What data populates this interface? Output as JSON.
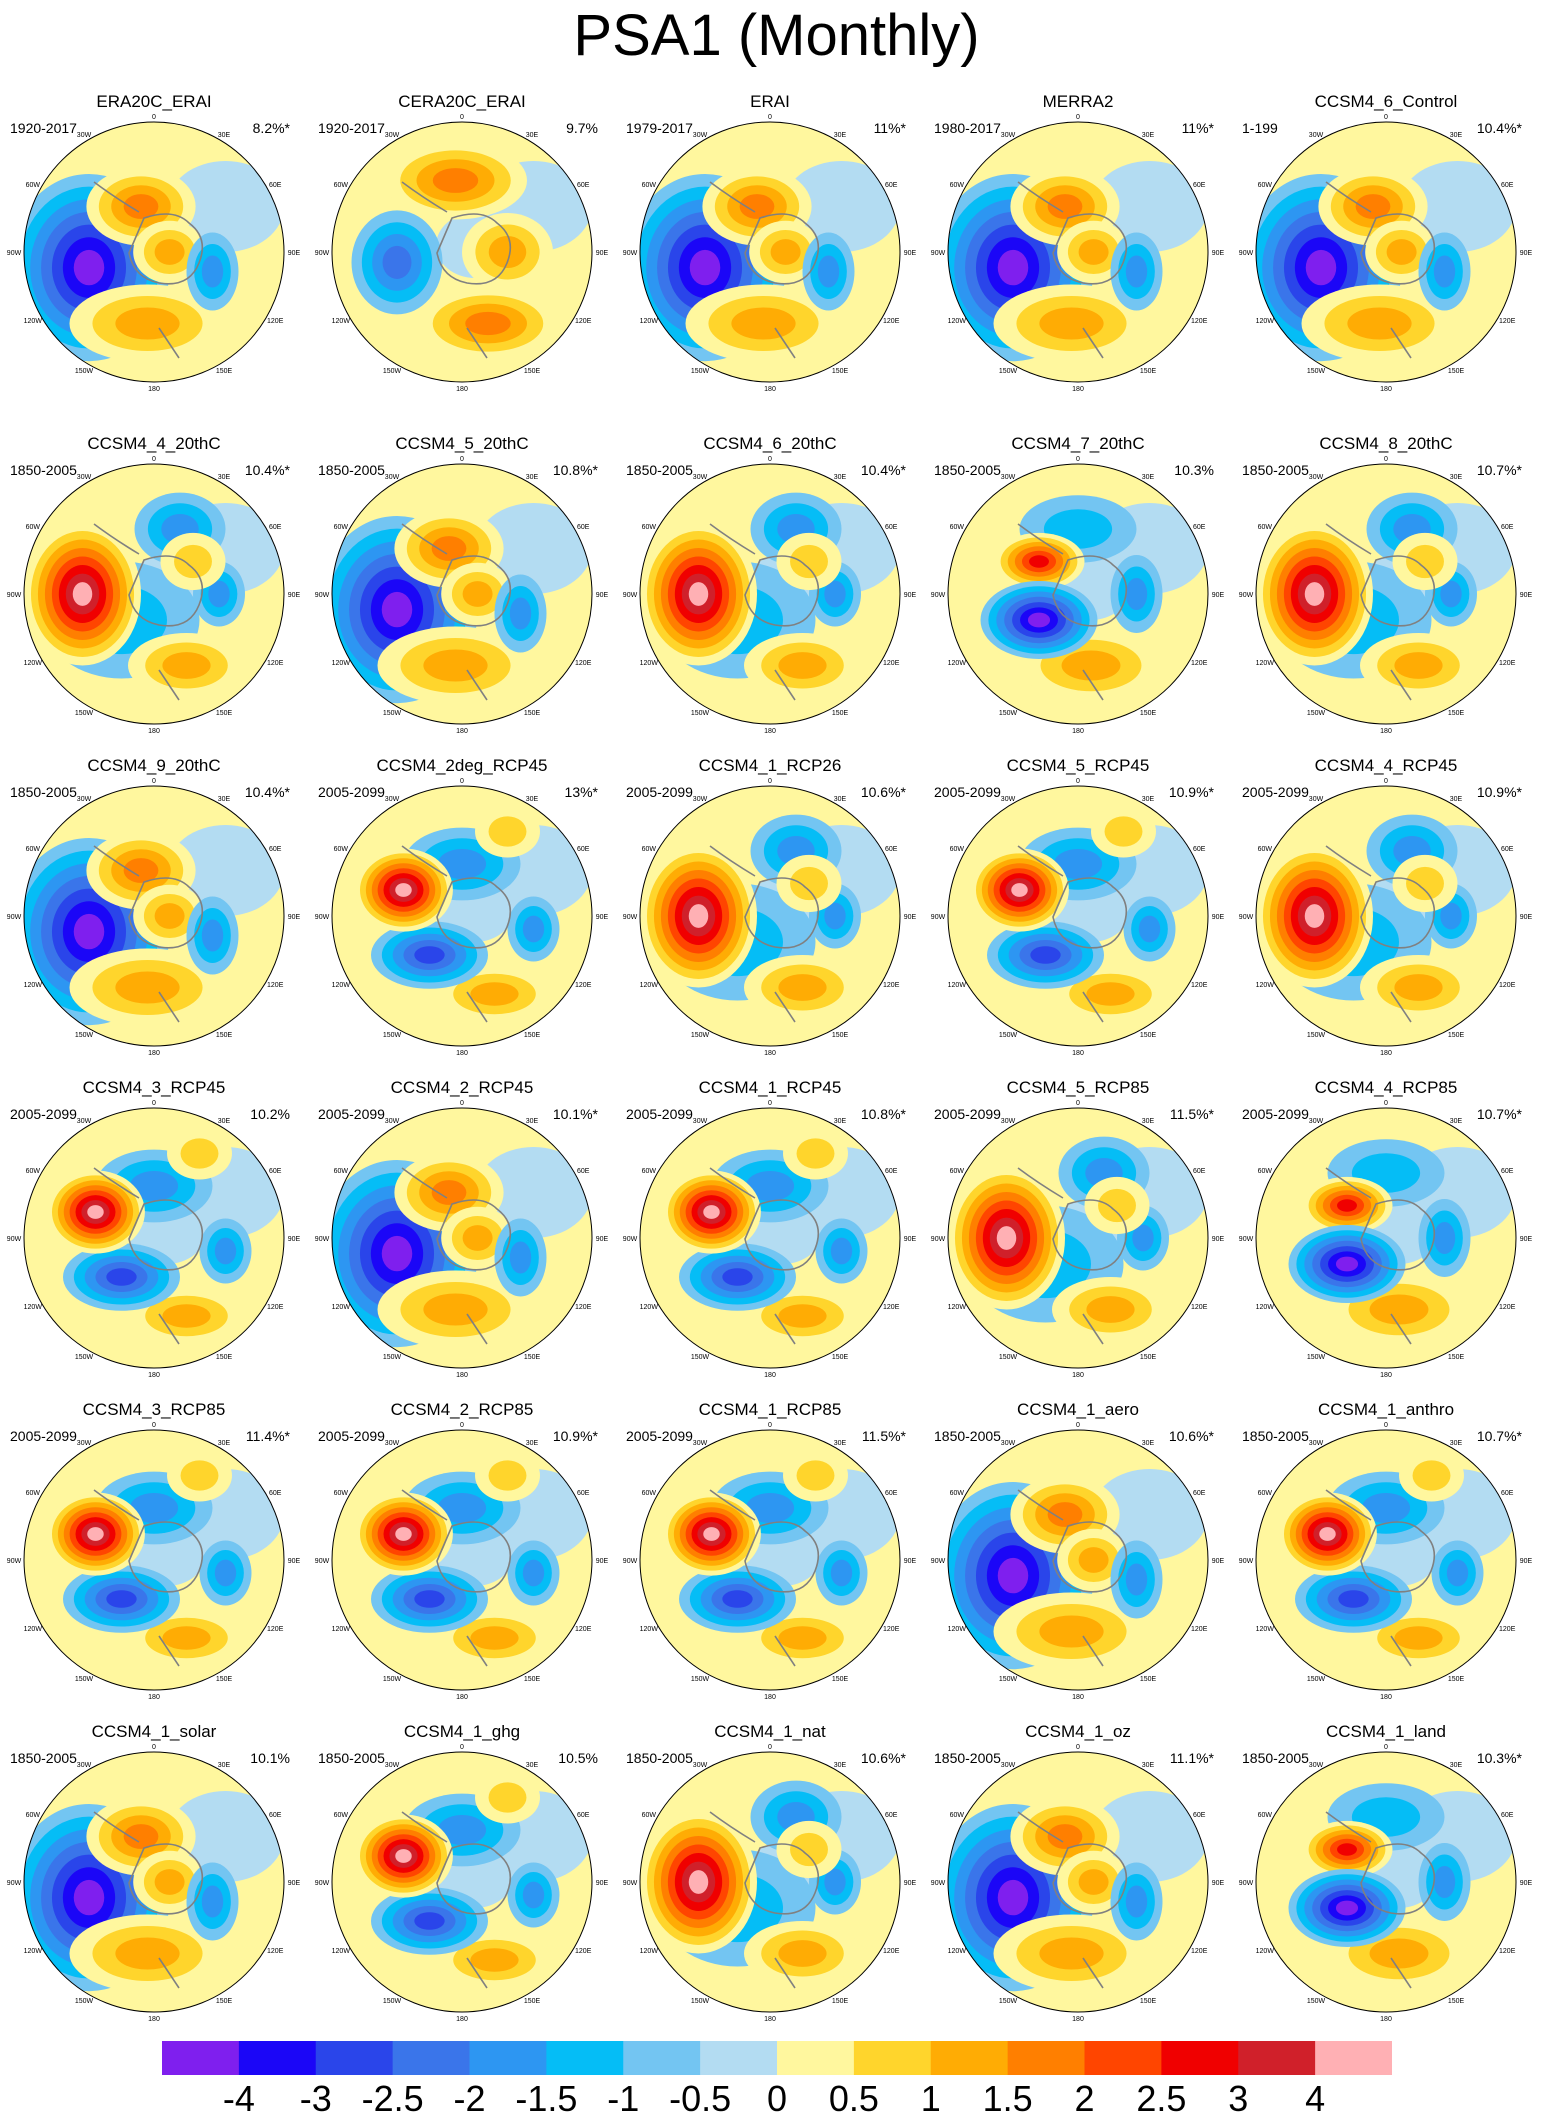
{
  "title": "PSA1 (Monthly)",
  "chart_data": {
    "type": "heatmap",
    "title": "PSA1 (Monthly)",
    "projection": "south polar stereographic",
    "map_labels": [
      "0",
      "30E",
      "60E",
      "90E",
      "120E",
      "150E",
      "180",
      "150W",
      "120W",
      "90W",
      "60W",
      "30W"
    ],
    "colorbar": {
      "levels": [
        "-4",
        "-3",
        "-2.5",
        "-2",
        "-1.5",
        "-1",
        "-0.5",
        "0",
        "0.5",
        "1",
        "1.5",
        "2",
        "2.5",
        "3",
        "4"
      ],
      "colors": [
        "#7f1fee",
        "#1b06f7",
        "#2a45ea",
        "#3a75ea",
        "#2d96f2",
        "#05bdf6",
        "#73c5f2",
        "#b3dcf2",
        "#fff79e",
        "#ffd52c",
        "#ffac04",
        "#ff7f00",
        "#ff4500",
        "#f00000",
        "#d0202a",
        "#ffb0b4"
      ]
    },
    "panels": [
      {
        "name": "ERA20C_ERAI",
        "period": "1920-2017",
        "variance": "8.2%*",
        "pattern": "neg"
      },
      {
        "name": "CERA20C_ERAI",
        "period": "1920-2017",
        "variance": "9.7%",
        "pattern": "neg_ring"
      },
      {
        "name": "ERAI",
        "period": "1979-2017",
        "variance": "11%*",
        "pattern": "neg"
      },
      {
        "name": "MERRA2",
        "period": "1980-2017",
        "variance": "11%*",
        "pattern": "neg"
      },
      {
        "name": "CCSM4_6_Control",
        "period": "1-199",
        "variance": "10.4%*",
        "pattern": "neg"
      },
      {
        "name": "CCSM4_4_20thC",
        "period": "1850-2005",
        "variance": "10.4%*",
        "pattern": "pos"
      },
      {
        "name": "CCSM4_5_20thC",
        "period": "1850-2005",
        "variance": "10.8%*",
        "pattern": "neg"
      },
      {
        "name": "CCSM4_6_20thC",
        "period": "1850-2005",
        "variance": "10.4%*",
        "pattern": "pos"
      },
      {
        "name": "CCSM4_7_20thC",
        "period": "1850-2005",
        "variance": "10.3%",
        "pattern": "dipole"
      },
      {
        "name": "CCSM4_8_20thC",
        "period": "1850-2005",
        "variance": "10.7%*",
        "pattern": "pos"
      },
      {
        "name": "CCSM4_9_20thC",
        "period": "1850-2005",
        "variance": "10.4%*",
        "pattern": "neg"
      },
      {
        "name": "CCSM4_2deg_RCP45",
        "period": "2005-2099",
        "variance": "13%*",
        "pattern": "pos_dipole"
      },
      {
        "name": "CCSM4_1_RCP26",
        "period": "2005-2099",
        "variance": "10.6%*",
        "pattern": "pos"
      },
      {
        "name": "CCSM4_5_RCP45",
        "period": "2005-2099",
        "variance": "10.9%*",
        "pattern": "pos_dipole"
      },
      {
        "name": "CCSM4_4_RCP45",
        "period": "2005-2099",
        "variance": "10.9%*",
        "pattern": "pos"
      },
      {
        "name": "CCSM4_3_RCP45",
        "period": "2005-2099",
        "variance": "10.2%",
        "pattern": "pos_dipole"
      },
      {
        "name": "CCSM4_2_RCP45",
        "period": "2005-2099",
        "variance": "10.1%*",
        "pattern": "neg"
      },
      {
        "name": "CCSM4_1_RCP45",
        "period": "2005-2099",
        "variance": "10.8%*",
        "pattern": "pos_dipole"
      },
      {
        "name": "CCSM4_5_RCP85",
        "period": "2005-2099",
        "variance": "11.5%*",
        "pattern": "pos"
      },
      {
        "name": "CCSM4_4_RCP85",
        "period": "2005-2099",
        "variance": "10.7%*",
        "pattern": "dipole"
      },
      {
        "name": "CCSM4_3_RCP85",
        "period": "2005-2099",
        "variance": "11.4%*",
        "pattern": "pos_dipole"
      },
      {
        "name": "CCSM4_2_RCP85",
        "period": "2005-2099",
        "variance": "10.9%*",
        "pattern": "pos_dipole"
      },
      {
        "name": "CCSM4_1_RCP85",
        "period": "2005-2099",
        "variance": "11.5%*",
        "pattern": "pos_dipole"
      },
      {
        "name": "CCSM4_1_aero",
        "period": "1850-2005",
        "variance": "10.6%*",
        "pattern": "neg"
      },
      {
        "name": "CCSM4_1_anthro",
        "period": "1850-2005",
        "variance": "10.7%*",
        "pattern": "pos_dipole"
      },
      {
        "name": "CCSM4_1_solar",
        "period": "1850-2005",
        "variance": "10.1%",
        "pattern": "neg"
      },
      {
        "name": "CCSM4_1_ghg",
        "period": "1850-2005",
        "variance": "10.5%",
        "pattern": "pos_dipole"
      },
      {
        "name": "CCSM4_1_nat",
        "period": "1850-2005",
        "variance": "10.6%*",
        "pattern": "pos"
      },
      {
        "name": "CCSM4_1_oz",
        "period": "1850-2005",
        "variance": "11.1%*",
        "pattern": "neg"
      },
      {
        "name": "CCSM4_1_land",
        "period": "1850-2005",
        "variance": "10.3%*",
        "pattern": "dipole"
      }
    ]
  }
}
